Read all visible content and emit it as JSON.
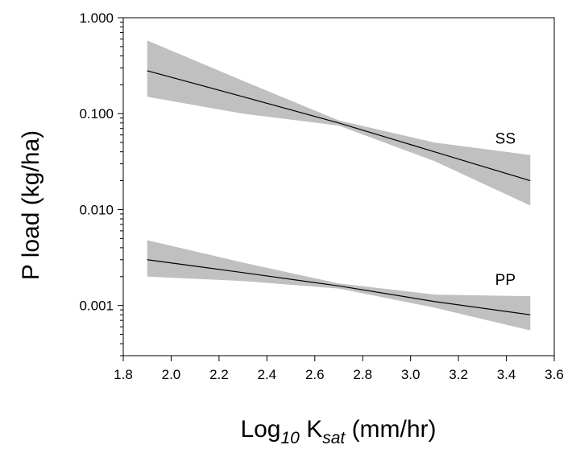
{
  "chart_data": {
    "type": "line",
    "title": "",
    "xlabel": {
      "prefix": "Log",
      "sub1": "10",
      "mid": " K",
      "sub2": "sat",
      "suffix": " (mm/hr)"
    },
    "ylabel": "P load (kg/ha)",
    "x_scale": "linear",
    "y_scale": "log",
    "xlim": [
      1.8,
      3.6
    ],
    "ylim": [
      0.0003,
      1.0
    ],
    "x_ticks": [
      1.8,
      2.0,
      2.2,
      2.4,
      2.6,
      2.8,
      3.0,
      3.2,
      3.4,
      3.6
    ],
    "x_tick_labels": [
      "1.8",
      "2.0",
      "2.2",
      "2.4",
      "2.6",
      "2.8",
      "3.0",
      "3.2",
      "3.4",
      "3.6"
    ],
    "y_ticks": [
      0.001,
      0.01,
      0.1,
      1.0
    ],
    "y_tick_labels": [
      "0.001",
      "0.010",
      "0.100",
      "1.000"
    ],
    "grid": false,
    "band_color": "#c0c0c0",
    "line_color": "#000000",
    "series": [
      {
        "name": "SS",
        "x": [
          1.9,
          2.3,
          2.7,
          3.1,
          3.5
        ],
        "y": [
          0.28,
          0.15,
          0.08,
          0.04,
          0.02
        ],
        "lower": [
          0.15,
          0.1,
          0.075,
          0.032,
          0.011
        ],
        "upper": [
          0.58,
          0.22,
          0.085,
          0.05,
          0.037
        ]
      },
      {
        "name": "PP",
        "x": [
          1.9,
          2.3,
          2.7,
          3.1,
          3.5
        ],
        "y": [
          0.003,
          0.0022,
          0.0016,
          0.0011,
          0.0008
        ],
        "lower": [
          0.002,
          0.0018,
          0.0015,
          0.00095,
          0.00055
        ],
        "upper": [
          0.0048,
          0.0028,
          0.0017,
          0.0013,
          0.00125
        ]
      }
    ]
  }
}
